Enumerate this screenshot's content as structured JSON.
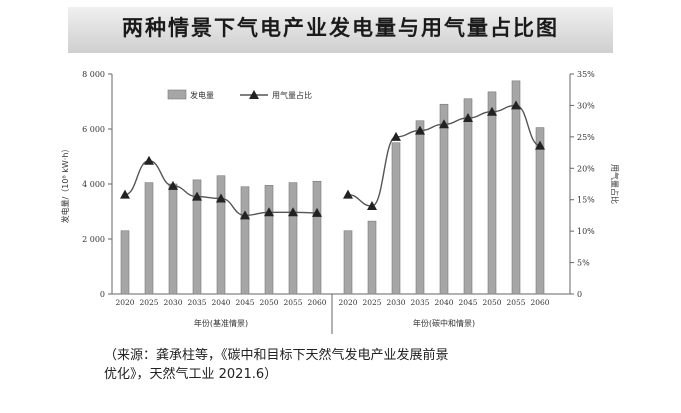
{
  "title": "两种情景下气电产业发电量与用气量占比图",
  "source_line1": "（来源：龚承柱等，《碳中和目标下天然气发电产业发展前景",
  "source_line2": "优化》，天然气工业 2021.6）",
  "colors": {
    "bar": "#a6a6a6",
    "bar_edge": "#777777",
    "line": "#555555",
    "marker": "#222222",
    "axis": "#666666"
  },
  "chart_data": {
    "type": "bar",
    "legend": {
      "bar_label": "发电量",
      "line_label": "用气量占比",
      "placement": "top-left"
    },
    "ylabel_left": "发电量/（10⁸ kW·h）",
    "ylabel_right": "用气量占比",
    "ylim_left": [
      0,
      8000
    ],
    "ylim_right": [
      0,
      35
    ],
    "yticks_left": [
      "0",
      "2 000",
      "4 000",
      "6 000",
      "8 000"
    ],
    "yticks_right": [
      "0",
      "5%",
      "10%",
      "15%",
      "20%",
      "25%",
      "30%",
      "35%"
    ],
    "panels": [
      {
        "xlabel": "年份(基准情景)",
        "categories": [
          "2020",
          "2025",
          "2030",
          "2035",
          "2040",
          "2045",
          "2050",
          "2055",
          "2060"
        ],
        "bars": [
          2300,
          4050,
          4000,
          4150,
          4300,
          3900,
          3950,
          4050,
          4100
        ],
        "line": [
          15.8,
          21.2,
          17.2,
          15.5,
          15.2,
          12.5,
          13.0,
          13.0,
          12.9
        ]
      },
      {
        "xlabel": "年份(碳中和情景)",
        "categories": [
          "2020",
          "2025",
          "2030",
          "2035",
          "2040",
          "2045",
          "2050",
          "2055",
          "2060"
        ],
        "bars": [
          2300,
          2650,
          5500,
          6300,
          6900,
          7100,
          7350,
          7750,
          6050
        ],
        "line": [
          15.8,
          14.0,
          25.0,
          26.0,
          27.0,
          28.0,
          29.0,
          30.0,
          23.6
        ]
      }
    ]
  }
}
